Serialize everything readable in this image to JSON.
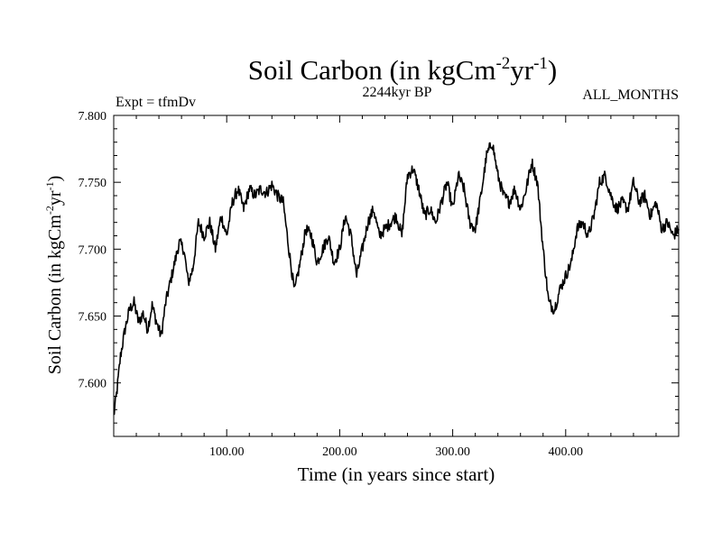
{
  "chart_data": {
    "type": "line",
    "title": {
      "main": "Soil Carbon (in kgCm",
      "sup1": "-2",
      "mid": "yr",
      "sup2": "-1",
      "end": ")"
    },
    "subtitle": "2244kyr BP",
    "left_label": "Expt = tfmDv",
    "right_label": "ALL_MONTHS",
    "xlabel": "Time (in years since start)",
    "ylabel": {
      "main": "Soil Carbon (in kgCm",
      "sup1": "-2",
      "mid": "yr",
      "sup2": "-1",
      "end": ")"
    },
    "xlim": [
      0,
      500
    ],
    "ylim": [
      7.56,
      7.8
    ],
    "xticks": [
      100,
      200,
      300,
      400
    ],
    "xtick_labels": [
      "100.00",
      "200.00",
      "300.00",
      "400.00"
    ],
    "yticks": [
      7.6,
      7.65,
      7.7,
      7.75,
      7.8
    ],
    "ytick_labels": [
      "7.600",
      "7.650",
      "7.700",
      "7.750",
      "7.800"
    ],
    "series": [
      {
        "name": "Soil Carbon",
        "color": "#000000",
        "x": [
          0,
          3,
          6,
          10,
          14,
          18,
          22,
          26,
          30,
          34,
          38,
          42,
          46,
          50,
          54,
          58,
          62,
          66,
          70,
          75,
          80,
          85,
          90,
          95,
          100,
          105,
          110,
          115,
          120,
          125,
          130,
          135,
          140,
          145,
          150,
          155,
          160,
          165,
          170,
          175,
          180,
          185,
          190,
          195,
          200,
          205,
          210,
          215,
          220,
          225,
          230,
          235,
          240,
          245,
          250,
          255,
          260,
          265,
          270,
          275,
          280,
          285,
          290,
          295,
          300,
          305,
          310,
          315,
          320,
          325,
          330,
          335,
          340,
          345,
          350,
          355,
          360,
          365,
          370,
          375,
          380,
          385,
          390,
          395,
          400,
          405,
          410,
          415,
          420,
          425,
          430,
          435,
          440,
          445,
          450,
          455,
          460,
          465,
          470,
          475,
          480,
          485,
          490,
          495,
          500
        ],
        "y": [
          7.575,
          7.595,
          7.62,
          7.64,
          7.655,
          7.66,
          7.645,
          7.652,
          7.64,
          7.658,
          7.645,
          7.635,
          7.66,
          7.675,
          7.69,
          7.705,
          7.7,
          7.675,
          7.685,
          7.72,
          7.71,
          7.72,
          7.7,
          7.725,
          7.71,
          7.735,
          7.745,
          7.73,
          7.745,
          7.74,
          7.745,
          7.742,
          7.748,
          7.74,
          7.735,
          7.7,
          7.668,
          7.69,
          7.715,
          7.71,
          7.69,
          7.7,
          7.71,
          7.69,
          7.7,
          7.725,
          7.71,
          7.68,
          7.7,
          7.72,
          7.73,
          7.71,
          7.715,
          7.72,
          7.725,
          7.71,
          7.755,
          7.76,
          7.745,
          7.725,
          7.73,
          7.72,
          7.735,
          7.75,
          7.73,
          7.755,
          7.745,
          7.72,
          7.715,
          7.74,
          7.77,
          7.78,
          7.755,
          7.74,
          7.735,
          7.745,
          7.73,
          7.745,
          7.765,
          7.75,
          7.7,
          7.66,
          7.655,
          7.67,
          7.68,
          7.69,
          7.715,
          7.72,
          7.71,
          7.725,
          7.75,
          7.755,
          7.74,
          7.73,
          7.735,
          7.73,
          7.75,
          7.735,
          7.74,
          7.725,
          7.735,
          7.715,
          7.72,
          7.71,
          7.715
        ]
      }
    ]
  }
}
